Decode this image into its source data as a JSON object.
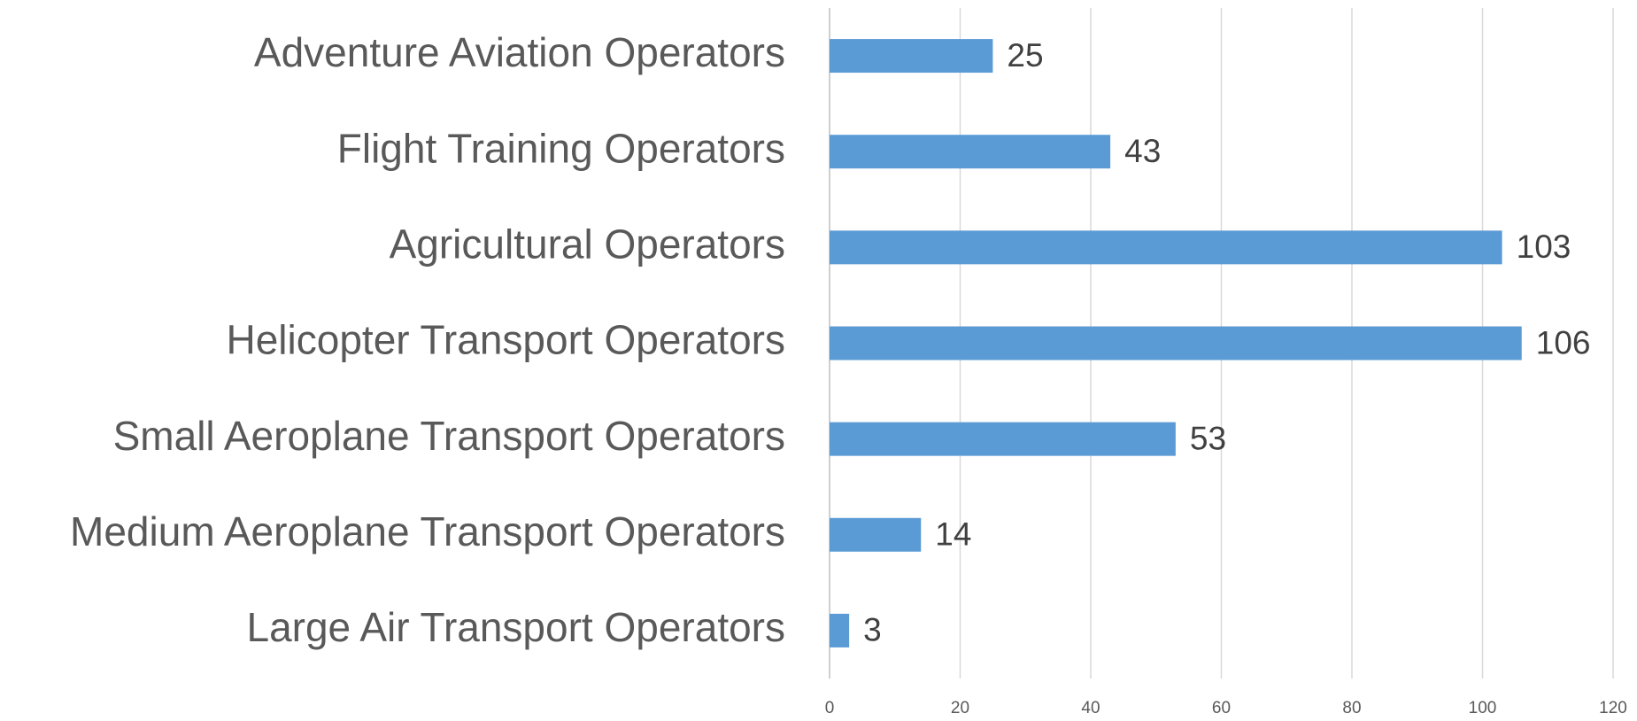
{
  "chart_data": {
    "type": "bar",
    "orientation": "horizontal",
    "categories": [
      "Adventure Aviation Operators",
      "Flight Training Operators",
      "Agricultural Operators",
      "Helicopter Transport Operators",
      "Small Aeroplane Transport Operators",
      "Medium Aeroplane Transport Operators",
      "Large Air Transport Operators"
    ],
    "values": [
      25,
      43,
      103,
      106,
      53,
      14,
      3
    ],
    "color": "#5b9bd5",
    "xlim": [
      0,
      120
    ],
    "xticks": [
      0,
      20,
      40,
      60,
      80,
      100,
      120
    ],
    "grid": true
  }
}
